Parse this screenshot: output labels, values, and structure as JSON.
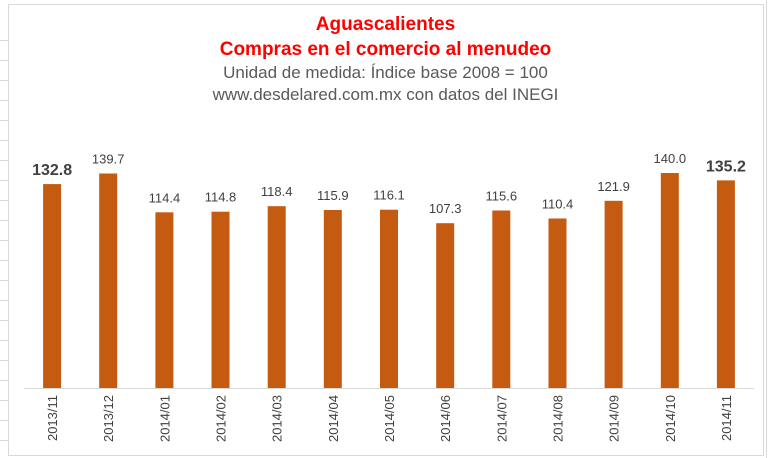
{
  "chart_data": {
    "type": "bar",
    "title": "Aguascalientes",
    "subtitle": "Compras en el comercio al menudeo",
    "subtitle2": "Unidad de medida: Índice base 2008 = 100",
    "subtitle3": "www.desdelared.com.mx con datos del INEGI",
    "xlabel": "",
    "ylabel": "",
    "categories": [
      "2013/11",
      "2013/12",
      "2014/01",
      "2014/02",
      "2014/03",
      "2014/04",
      "2014/05",
      "2014/06",
      "2014/07",
      "2014/08",
      "2014/09",
      "2014/10",
      "2014/11"
    ],
    "values": [
      132.8,
      139.7,
      114.4,
      114.8,
      118.4,
      115.9,
      116.1,
      107.3,
      115.6,
      110.4,
      121.9,
      140.0,
      135.2
    ],
    "value_labels": [
      "132.8",
      "139.7",
      "114.4",
      "114.8",
      "118.4",
      "115.9",
      "116.1",
      "107.3",
      "115.6",
      "110.4",
      "121.9",
      "140.0",
      "135.2"
    ],
    "highlighted_labels": [
      0,
      12
    ],
    "ylim": [
      0,
      140
    ],
    "grid": false,
    "legend": "none",
    "bar_color": "#C55A11",
    "title_color": "#FF0000",
    "subtitle_text_color": "#595959",
    "label_color": "#404040"
  }
}
